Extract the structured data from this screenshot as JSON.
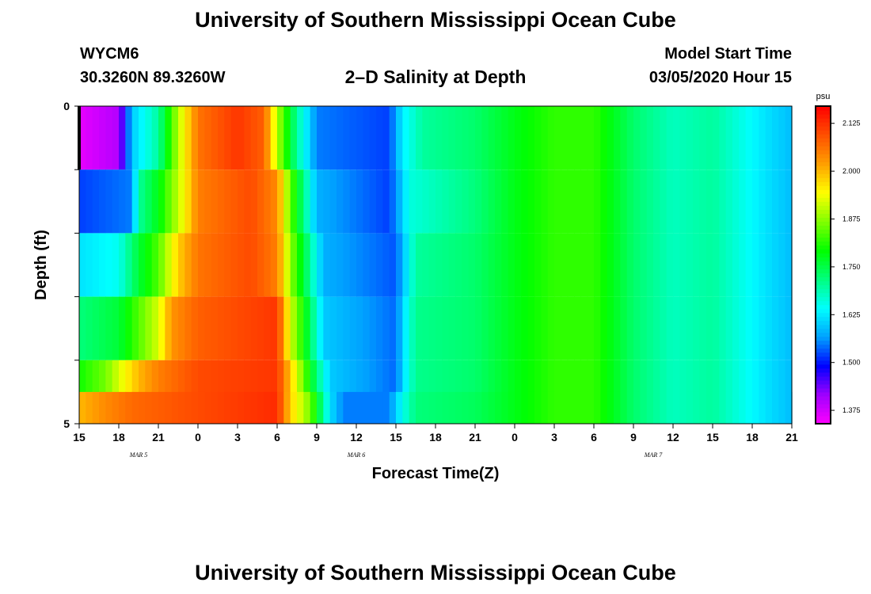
{
  "page": {
    "title_top": "University of Southern Mississippi Ocean Cube",
    "title_bottom": "University of Southern Mississippi Ocean Cube",
    "station": "WYCM6",
    "coords": "30.3260N 89.3260W",
    "model_start_label": "Model Start Time",
    "model_start_value": "03/05/2020 Hour 15"
  },
  "chart_data": {
    "type": "heatmap",
    "title": "2–D Salinity at Depth",
    "xlabel": "Forecast Time(Z)",
    "ylabel": "Depth (ft)",
    "x_range_hours": [
      0,
      54
    ],
    "ylim": [
      0,
      5
    ],
    "x_ticks": [
      {
        "hour": 0,
        "label": "15"
      },
      {
        "hour": 3,
        "label": "18"
      },
      {
        "hour": 6,
        "label": "21"
      },
      {
        "hour": 9,
        "label": "0"
      },
      {
        "hour": 12,
        "label": "3"
      },
      {
        "hour": 15,
        "label": "6"
      },
      {
        "hour": 18,
        "label": "9"
      },
      {
        "hour": 21,
        "label": "12"
      },
      {
        "hour": 24,
        "label": "15"
      },
      {
        "hour": 27,
        "label": "18"
      },
      {
        "hour": 30,
        "label": "21"
      },
      {
        "hour": 33,
        "label": "0"
      },
      {
        "hour": 36,
        "label": "3"
      },
      {
        "hour": 39,
        "label": "6"
      },
      {
        "hour": 42,
        "label": "9"
      },
      {
        "hour": 45,
        "label": "12"
      },
      {
        "hour": 48,
        "label": "15"
      },
      {
        "hour": 51,
        "label": "18"
      },
      {
        "hour": 54,
        "label": "21"
      }
    ],
    "date_labels": [
      {
        "hour": 4.5,
        "label": "MAR 5"
      },
      {
        "hour": 21,
        "label": "MAR 6"
      },
      {
        "hour": 43.5,
        "label": "MAR 7"
      }
    ],
    "y_ticks": [
      {
        "depth": 0,
        "label": "0"
      },
      {
        "depth": 5,
        "label": "5"
      }
    ],
    "depth_layers": [
      0,
      1,
      2,
      3,
      4,
      5
    ],
    "colorbar": {
      "unit": "psu",
      "min": 1.34,
      "max": 2.17,
      "ticks": [
        "1.375",
        "1.500",
        "1.625",
        "1.750",
        "1.875",
        "2.000",
        "2.125"
      ],
      "colors": [
        "#ff00ff",
        "#a000ff",
        "#0000ff",
        "#00a0ff",
        "#00ffff",
        "#00ff80",
        "#00ff00",
        "#80ff00",
        "#ffff00",
        "#ffa000",
        "#ff5000",
        "#ff0000"
      ]
    },
    "rows": [
      {
        "depth_top": 0,
        "depth_bottom": 1,
        "keys": [
          [
            0,
            1.36
          ],
          [
            3,
            1.4
          ],
          [
            4,
            1.6
          ],
          [
            6,
            1.7
          ],
          [
            7.5,
            1.9
          ],
          [
            9,
            2.06
          ],
          [
            12,
            2.12
          ],
          [
            14,
            2.08
          ],
          [
            15,
            1.9
          ],
          [
            16.5,
            1.7
          ],
          [
            18,
            1.55
          ],
          [
            23.5,
            1.52
          ],
          [
            24.5,
            1.63
          ],
          [
            26,
            1.7
          ],
          [
            30,
            1.73
          ],
          [
            33,
            1.78
          ],
          [
            36,
            1.82
          ],
          [
            39,
            1.82
          ],
          [
            42,
            1.73
          ],
          [
            45,
            1.68
          ],
          [
            48,
            1.7
          ],
          [
            50,
            1.66
          ],
          [
            52,
            1.62
          ],
          [
            54,
            1.59
          ]
        ]
      },
      {
        "depth_top": 1,
        "depth_bottom": 2,
        "keys": [
          [
            0,
            1.52
          ],
          [
            4,
            1.55
          ],
          [
            4.5,
            1.7
          ],
          [
            6,
            1.78
          ],
          [
            8,
            1.95
          ],
          [
            9,
            2.05
          ],
          [
            13,
            2.1
          ],
          [
            15,
            2.04
          ],
          [
            16,
            1.85
          ],
          [
            17.5,
            1.65
          ],
          [
            18,
            1.58
          ],
          [
            23.5,
            1.52
          ],
          [
            24.5,
            1.6
          ],
          [
            25,
            1.66
          ],
          [
            30,
            1.72
          ],
          [
            33,
            1.78
          ],
          [
            36,
            1.82
          ],
          [
            39,
            1.82
          ],
          [
            42,
            1.73
          ],
          [
            45,
            1.68
          ],
          [
            48,
            1.7
          ],
          [
            50,
            1.66
          ],
          [
            52,
            1.62
          ],
          [
            54,
            1.59
          ]
        ]
      },
      {
        "depth_top": 2,
        "depth_bottom": 3,
        "keys": [
          [
            0,
            1.62
          ],
          [
            3,
            1.65
          ],
          [
            4.5,
            1.76
          ],
          [
            6,
            1.84
          ],
          [
            7.5,
            1.98
          ],
          [
            9,
            2.06
          ],
          [
            13,
            2.1
          ],
          [
            15,
            2.05
          ],
          [
            16,
            1.88
          ],
          [
            17.5,
            1.7
          ],
          [
            18.5,
            1.58
          ],
          [
            24,
            1.53
          ],
          [
            24.8,
            1.62
          ],
          [
            25.5,
            1.7
          ],
          [
            30,
            1.73
          ],
          [
            33,
            1.78
          ],
          [
            36,
            1.82
          ],
          [
            39,
            1.82
          ],
          [
            42,
            1.73
          ],
          [
            45,
            1.68
          ],
          [
            48,
            1.7
          ],
          [
            50,
            1.66
          ],
          [
            52,
            1.62
          ],
          [
            54,
            1.59
          ]
        ]
      },
      {
        "depth_top": 3,
        "depth_bottom": 4,
        "keys": [
          [
            0,
            1.72
          ],
          [
            3,
            1.76
          ],
          [
            4.5,
            1.84
          ],
          [
            6,
            1.92
          ],
          [
            7,
            2.03
          ],
          [
            9,
            2.08
          ],
          [
            15,
            2.12
          ],
          [
            16,
            1.92
          ],
          [
            17.5,
            1.74
          ],
          [
            18.5,
            1.6
          ],
          [
            24,
            1.54
          ],
          [
            24.8,
            1.64
          ],
          [
            25.5,
            1.71
          ],
          [
            30,
            1.73
          ],
          [
            33,
            1.78
          ],
          [
            36,
            1.82
          ],
          [
            39,
            1.82
          ],
          [
            42,
            1.73
          ],
          [
            45,
            1.68
          ],
          [
            48,
            1.7
          ],
          [
            50,
            1.66
          ],
          [
            52,
            1.62
          ],
          [
            54,
            1.59
          ]
        ]
      },
      {
        "depth_top": 4,
        "depth_bottom": 5,
        "keys": [
          [
            0,
            1.8
          ],
          [
            2,
            1.86
          ],
          [
            3,
            1.92
          ],
          [
            4.5,
            2.0
          ],
          [
            6,
            2.05
          ],
          [
            9,
            2.1
          ],
          [
            15,
            2.12
          ],
          [
            16.5,
            1.92
          ],
          [
            18,
            1.72
          ],
          [
            19,
            1.6
          ],
          [
            24,
            1.54
          ],
          [
            24.8,
            1.64
          ],
          [
            25.5,
            1.71
          ],
          [
            30,
            1.73
          ],
          [
            33,
            1.78
          ],
          [
            36,
            1.82
          ],
          [
            39,
            1.82
          ],
          [
            42,
            1.73
          ],
          [
            45,
            1.68
          ],
          [
            48,
            1.7
          ],
          [
            50,
            1.66
          ],
          [
            52,
            1.62
          ],
          [
            54,
            1.59
          ]
        ]
      },
      {
        "depth_top": 4.5,
        "depth_bottom": 5,
        "keys": [
          [
            0,
            2.0
          ],
          [
            2,
            2.04
          ],
          [
            4,
            2.07
          ],
          [
            9,
            2.1
          ],
          [
            15,
            2.13
          ],
          [
            16,
            1.98
          ],
          [
            17.5,
            1.86
          ],
          [
            18,
            1.78
          ],
          [
            19,
            1.62
          ],
          [
            20,
            1.55
          ],
          [
            23.5,
            1.55
          ],
          [
            24.5,
            1.65
          ],
          [
            25.5,
            1.72
          ],
          [
            30,
            1.74
          ],
          [
            33,
            1.78
          ],
          [
            36,
            1.82
          ],
          [
            39,
            1.82
          ],
          [
            42,
            1.73
          ],
          [
            45,
            1.68
          ],
          [
            48,
            1.7
          ],
          [
            50,
            1.66
          ],
          [
            52,
            1.62
          ],
          [
            54,
            1.59
          ]
        ]
      }
    ]
  }
}
